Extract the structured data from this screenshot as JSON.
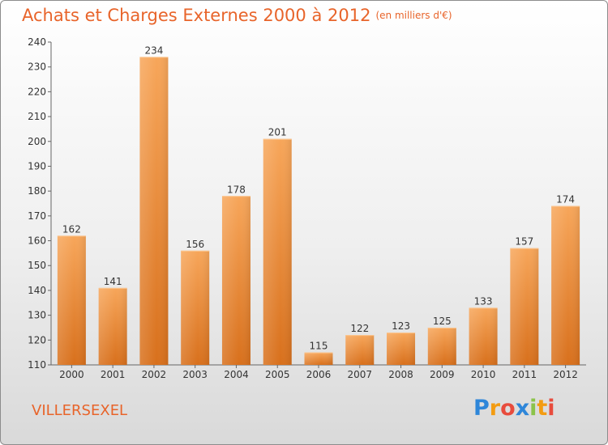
{
  "header": {
    "title": "Achats et Charges Externes 2000 à 2012",
    "unit": "(en milliers d'€)"
  },
  "footer": {
    "commune": "VILLERSEXEL",
    "logo_letters": [
      "P",
      "r",
      "o",
      "x",
      "i",
      "t",
      "i"
    ],
    "logo_colors": [
      "#2e86d9",
      "#f39c12",
      "#e84c3d",
      "#2e86d9",
      "#8bc34a",
      "#f39c12",
      "#e84c3d"
    ]
  },
  "colors": {
    "bar_top": "#f7a65a",
    "bar_bottom": "#d8701c",
    "accent": "#e8642a"
  },
  "chart_data": {
    "type": "bar",
    "title": "Achats et Charges Externes 2000 à 2012",
    "categories": [
      "2000",
      "2001",
      "2002",
      "2003",
      "2004",
      "2005",
      "2006",
      "2007",
      "2008",
      "2009",
      "2010",
      "2011",
      "2012"
    ],
    "values": [
      162,
      141,
      234,
      156,
      178,
      201,
      115,
      122,
      123,
      125,
      133,
      157,
      174
    ],
    "ylim": [
      110,
      240
    ],
    "yticks": [
      110,
      120,
      130,
      140,
      150,
      160,
      170,
      180,
      190,
      200,
      210,
      220,
      230,
      240
    ],
    "grid": false,
    "legend": "none",
    "data_labels": true
  }
}
